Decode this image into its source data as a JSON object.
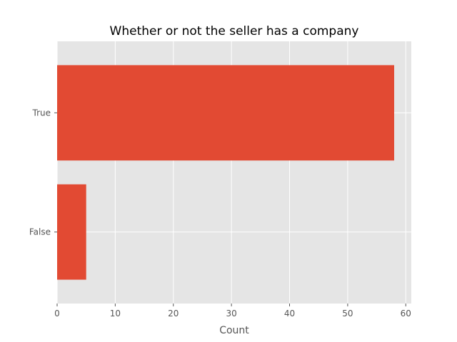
{
  "chart_data": {
    "type": "bar",
    "orientation": "horizontal",
    "title": "Whether or not the seller has a company",
    "xlabel": "Count",
    "ylabel": "",
    "categories": [
      "False",
      "True"
    ],
    "values": [
      5,
      58
    ],
    "xlim": [
      0,
      60.95
    ],
    "xticks": [
      "0",
      "10",
      "20",
      "30",
      "40",
      "50",
      "60"
    ],
    "grid": true,
    "style": "ggplot",
    "colors": {
      "bar": "#e24a33",
      "plot_background": "#e5e5e5",
      "grid": "#ffffff",
      "tick_text": "#555555",
      "title_text": "#000000"
    }
  }
}
